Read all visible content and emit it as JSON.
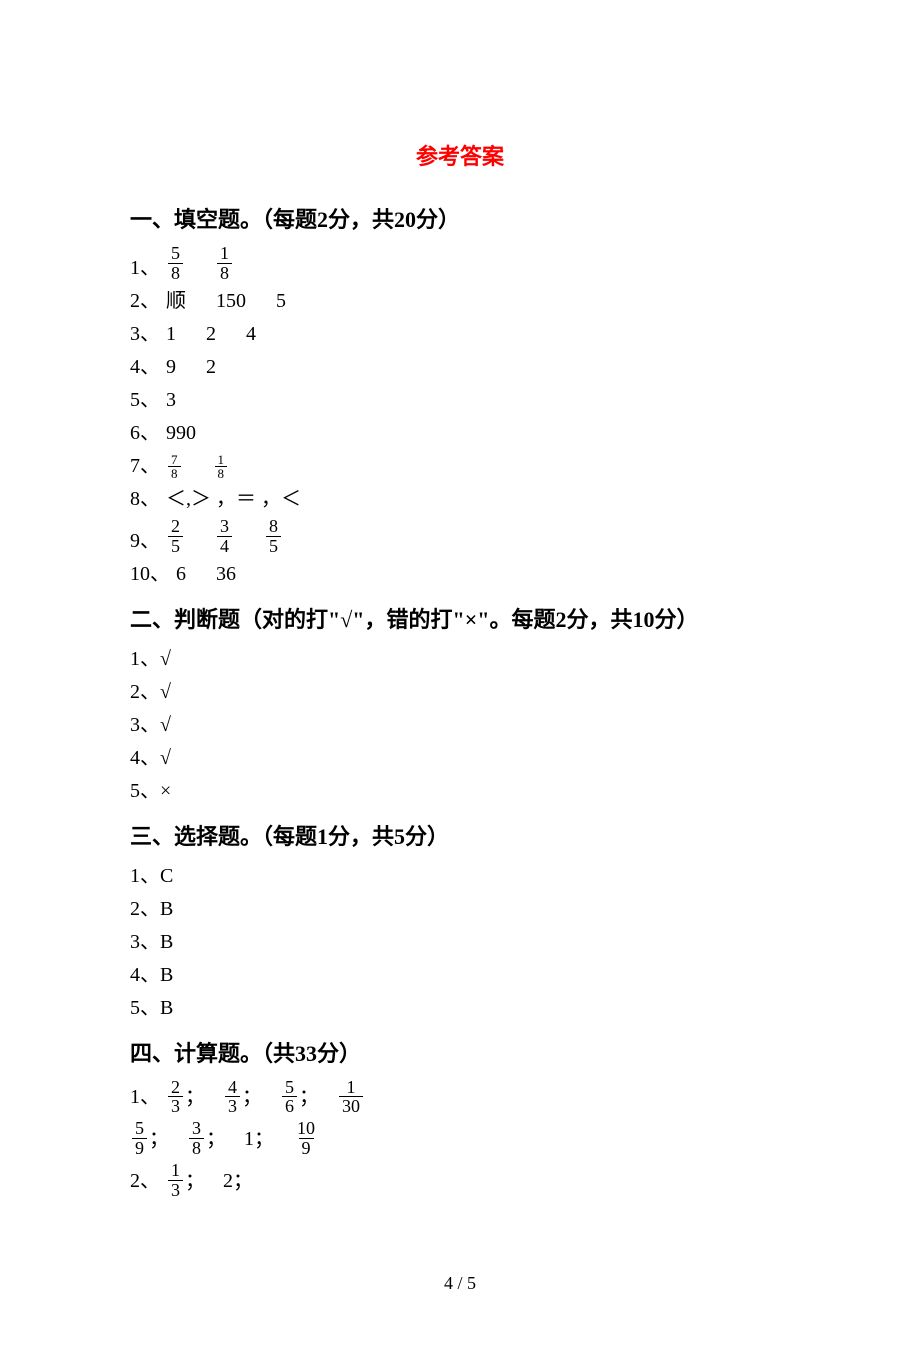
{
  "title": "参考答案",
  "sections": {
    "s1": {
      "heading": "一、填空题。（每题2分，共20分）",
      "q1": {
        "label": "1、",
        "f1n": "5",
        "f1d": "8",
        "f2n": "1",
        "f2d": "8"
      },
      "q2": {
        "label": "2、",
        "a": "顺",
        "b": "150",
        "c": "5"
      },
      "q3": {
        "label": "3、",
        "a": "1",
        "b": "2",
        "c": "4"
      },
      "q4": {
        "label": "4、",
        "a": "9",
        "b": "2"
      },
      "q5": {
        "label": "5、",
        "a": "3"
      },
      "q6": {
        "label": "6、",
        "a": "990"
      },
      "q7": {
        "label": "7、",
        "f1n": "7",
        "f1d": "8",
        "f2n": "1",
        "f2d": "8"
      },
      "q8": {
        "label": "8、",
        "a": "＜,＞ ，＝ ，＜"
      },
      "q9": {
        "label": "9、",
        "f1n": "2",
        "f1d": "5",
        "f2n": "3",
        "f2d": "4",
        "f3n": "8",
        "f3d": "5"
      },
      "q10": {
        "label": "10、",
        "a": "6",
        "b": "36"
      }
    },
    "s2": {
      "heading": "二、判断题（对的打\"√\"，错的打\"×\"。每题2分，共10分）",
      "q1": "1、√",
      "q2": "2、√",
      "q3": "3、√",
      "q4": "4、√",
      "q5": "5、×"
    },
    "s3": {
      "heading": "三、选择题。（每题1分，共5分）",
      "q1": "1、C",
      "q2": "2、B",
      "q3": "3、B",
      "q4": "4、B",
      "q5": "5、B"
    },
    "s4": {
      "heading": "四、计算题。（共33分）",
      "q1": {
        "label": "1、",
        "row1": [
          {
            "n": "2",
            "d": "3",
            "sep": "；"
          },
          {
            "n": "4",
            "d": "3",
            "sep": "；"
          },
          {
            "n": "5",
            "d": "6",
            "sep": "；"
          },
          {
            "n": "1",
            "d": "30",
            "sep": ""
          }
        ],
        "row2_prefix": "",
        "row2": [
          {
            "n": "5",
            "d": "9",
            "sep": "；"
          },
          {
            "n": "3",
            "d": "8",
            "sep": "；"
          }
        ],
        "row2_mid": "1；",
        "row2_last": {
          "n": "10",
          "d": "9"
        }
      },
      "q2": {
        "label": "2、",
        "f1n": "1",
        "f1d": "3",
        "sep1": "；",
        "mid": "2；"
      }
    }
  },
  "page_num": "4 / 5"
}
